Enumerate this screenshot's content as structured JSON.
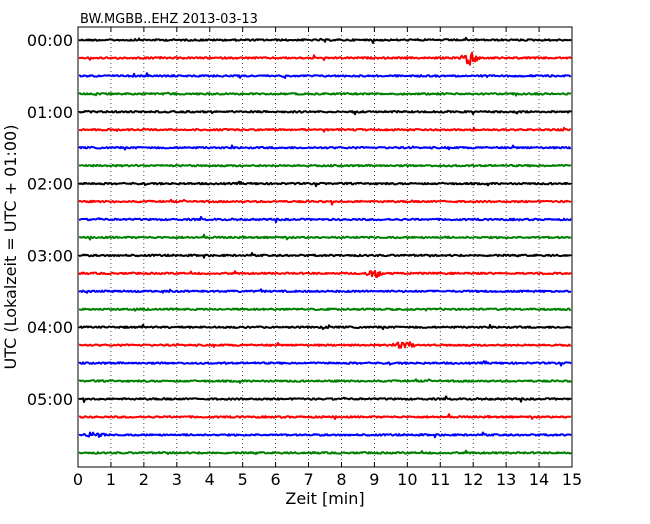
{
  "chart_data": {
    "type": "line",
    "title": "BW.MGBB..EHZ 2013-03-13",
    "xlabel": "Zeit  [min]",
    "ylabel": "UTC (Lokalzeit = UTC + 01:00)",
    "xlim": [
      0,
      15
    ],
    "x_ticks": [
      "0",
      "1",
      "2",
      "3",
      "4",
      "5",
      "6",
      "7",
      "8",
      "9",
      "10",
      "11",
      "12",
      "13",
      "14",
      "15"
    ],
    "y_tick_labels": [
      "00:00",
      "01:00",
      "02:00",
      "03:00",
      "04:00",
      "05:00"
    ],
    "grid": "vertical dotted",
    "line_colors": [
      "#000000",
      "#ff0000",
      "#0000ff",
      "#008000"
    ],
    "traces": [
      {
        "start": "00:00",
        "color": "#000000"
      },
      {
        "start": "00:15",
        "color": "#ff0000"
      },
      {
        "start": "00:30",
        "color": "#0000ff"
      },
      {
        "start": "00:45",
        "color": "#008000"
      },
      {
        "start": "01:00",
        "color": "#000000"
      },
      {
        "start": "01:15",
        "color": "#ff0000"
      },
      {
        "start": "01:30",
        "color": "#0000ff"
      },
      {
        "start": "01:45",
        "color": "#008000"
      },
      {
        "start": "02:00",
        "color": "#000000"
      },
      {
        "start": "02:15",
        "color": "#ff0000"
      },
      {
        "start": "02:30",
        "color": "#0000ff"
      },
      {
        "start": "02:45",
        "color": "#008000"
      },
      {
        "start": "03:00",
        "color": "#000000"
      },
      {
        "start": "03:15",
        "color": "#ff0000"
      },
      {
        "start": "03:30",
        "color": "#0000ff"
      },
      {
        "start": "03:45",
        "color": "#008000"
      },
      {
        "start": "04:00",
        "color": "#000000"
      },
      {
        "start": "04:15",
        "color": "#ff0000"
      },
      {
        "start": "04:30",
        "color": "#0000ff"
      },
      {
        "start": "04:45",
        "color": "#008000"
      },
      {
        "start": "05:00",
        "color": "#000000"
      },
      {
        "start": "05:15",
        "color": "#ff0000"
      },
      {
        "start": "05:30",
        "color": "#0000ff"
      },
      {
        "start": "05:45",
        "color": "#008000"
      }
    ],
    "events": [
      {
        "trace": 1,
        "minute": 11.9,
        "amplitude": 1.0
      },
      {
        "trace": 13,
        "minute": 9.0,
        "amplitude": 0.6
      },
      {
        "trace": 17,
        "minute": 9.9,
        "amplitude": 0.7
      },
      {
        "trace": 22,
        "minute": 0.55,
        "amplitude": 0.5
      }
    ]
  }
}
